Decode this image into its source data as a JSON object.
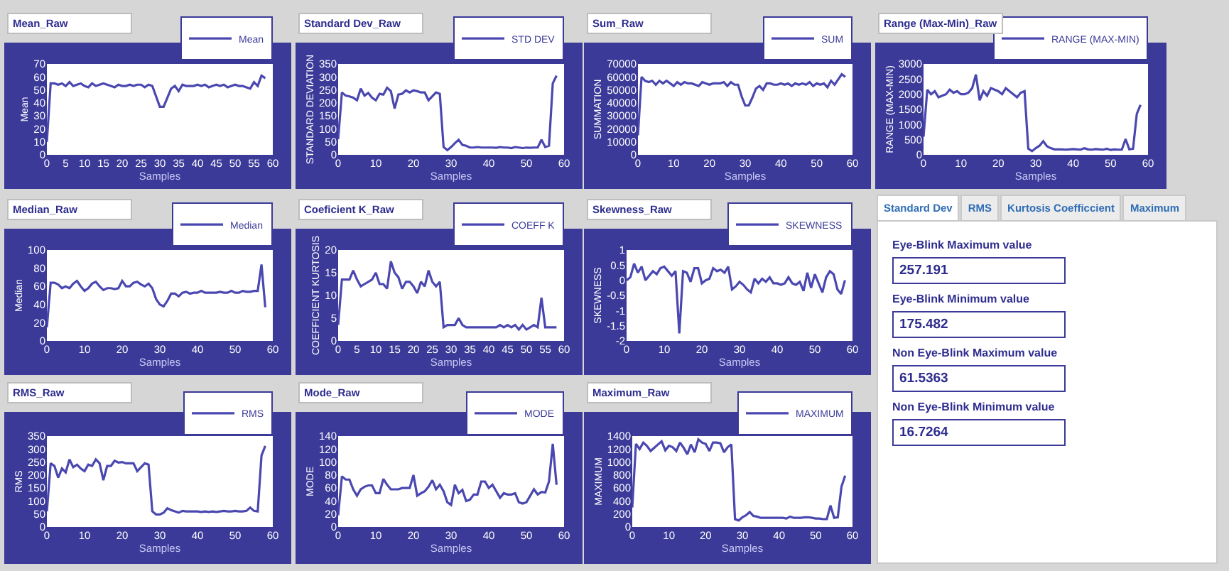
{
  "chart_data": [
    {
      "type": "line",
      "title": "Mean_Raw",
      "xlabel": "Samples",
      "ylabel": "Mean",
      "legend": "top right",
      "xlim": [
        0,
        60
      ],
      "xticks": [
        0,
        5,
        10,
        15,
        20,
        25,
        30,
        35,
        40,
        45,
        50,
        55,
        60
      ],
      "ylim": [
        0,
        70
      ],
      "yticks": [
        0,
        10,
        20,
        30,
        40,
        50,
        60,
        70
      ],
      "x": [
        0,
        1,
        2,
        3,
        4,
        5,
        6,
        7,
        8,
        9,
        10,
        11,
        12,
        13,
        14,
        15,
        16,
        17,
        18,
        19,
        20,
        21,
        22,
        23,
        24,
        25,
        26,
        27,
        28,
        29,
        30,
        31,
        32,
        33,
        34,
        35,
        36,
        37,
        38,
        39,
        40,
        41,
        42,
        43,
        44,
        45,
        46,
        47,
        48,
        49,
        50,
        51,
        52,
        53,
        54,
        55,
        56,
        57,
        58
      ],
      "series": [
        {
          "name": "Mean",
          "color": "#4a48b0",
          "values": [
            10,
            55,
            55,
            54,
            55,
            53,
            56,
            53,
            54,
            55,
            53,
            52,
            55,
            53,
            54,
            55,
            54,
            53,
            52,
            54,
            53,
            53,
            54,
            53,
            54,
            54,
            52,
            54,
            53,
            45,
            37,
            37,
            44,
            51,
            53,
            49,
            54,
            53,
            53,
            53,
            54,
            53,
            54,
            52,
            53,
            54,
            53,
            54,
            52,
            53,
            54,
            53,
            53,
            52,
            51,
            56,
            53,
            61,
            59
          ]
        }
      ]
    },
    {
      "type": "line",
      "title": "Standard Dev_Raw",
      "xlabel": "Samples",
      "ylabel": "STANDARD DEVIATION",
      "legend": "top right",
      "xlim": [
        0,
        60
      ],
      "xticks": [
        0,
        10,
        20,
        30,
        40,
        50,
        60
      ],
      "ylim": [
        0,
        350
      ],
      "yticks": [
        0,
        50,
        100,
        150,
        200,
        250,
        300,
        350
      ],
      "x": [
        0,
        1,
        2,
        3,
        4,
        5,
        6,
        7,
        8,
        9,
        10,
        11,
        12,
        13,
        14,
        15,
        16,
        17,
        18,
        19,
        20,
        21,
        22,
        23,
        24,
        25,
        26,
        27,
        28,
        29,
        30,
        31,
        32,
        33,
        34,
        35,
        36,
        37,
        38,
        39,
        40,
        41,
        42,
        43,
        44,
        45,
        46,
        47,
        48,
        49,
        50,
        51,
        52,
        53,
        54,
        55,
        56,
        57,
        58
      ],
      "series": [
        {
          "name": "STD DEV",
          "color": "#4a48b0",
          "values": [
            60,
            240,
            228,
            225,
            220,
            210,
            255,
            228,
            238,
            220,
            210,
            235,
            232,
            258,
            245,
            178,
            232,
            235,
            248,
            240,
            248,
            245,
            240,
            240,
            210,
            225,
            240,
            235,
            30,
            18,
            30,
            45,
            58,
            38,
            35,
            28,
            28,
            30,
            28,
            28,
            28,
            28,
            27,
            30,
            28,
            28,
            26,
            30,
            28,
            26,
            28,
            27,
            28,
            28,
            58,
            30,
            35,
            275,
            305
          ]
        }
      ]
    },
    {
      "type": "line",
      "title": "Sum_Raw",
      "xlabel": "Samples",
      "ylabel": "SUMMATION",
      "legend": "top right",
      "xlim": [
        0,
        60
      ],
      "xticks": [
        0,
        10,
        20,
        30,
        40,
        50,
        60
      ],
      "ylim": [
        0,
        70000
      ],
      "yticks": [
        0,
        10000,
        20000,
        30000,
        40000,
        50000,
        60000,
        70000
      ],
      "x": [
        0,
        1,
        2,
        3,
        4,
        5,
        6,
        7,
        8,
        9,
        10,
        11,
        12,
        13,
        14,
        15,
        16,
        17,
        18,
        19,
        20,
        21,
        22,
        23,
        24,
        25,
        26,
        27,
        28,
        29,
        30,
        31,
        32,
        33,
        34,
        35,
        36,
        37,
        38,
        39,
        40,
        41,
        42,
        43,
        44,
        45,
        46,
        47,
        48,
        49,
        50,
        51,
        52,
        53,
        54,
        55,
        56,
        57,
        58
      ],
      "series": [
        {
          "name": "SUM",
          "color": "#4a48b0",
          "values": [
            15000,
            60000,
            57000,
            56000,
            57000,
            54000,
            57000,
            55000,
            57000,
            55000,
            53000,
            56000,
            54000,
            56000,
            55000,
            55000,
            54000,
            53000,
            56000,
            55000,
            54000,
            55000,
            55000,
            55000,
            56000,
            53000,
            56000,
            54000,
            54000,
            45000,
            38000,
            38000,
            44000,
            51000,
            53000,
            50000,
            55000,
            55000,
            54000,
            54000,
            55000,
            54000,
            55000,
            53000,
            55000,
            54000,
            55000,
            54000,
            56000,
            53000,
            55000,
            54000,
            55000,
            52000,
            57000,
            54000,
            58000,
            62000,
            60000
          ]
        }
      ]
    },
    {
      "type": "line",
      "title": "Range (Max-Min)_Raw",
      "xlabel": "Samples",
      "ylabel": "RANGE (MAX-MIN)",
      "legend": "top right",
      "xlim": [
        0,
        60
      ],
      "xticks": [
        0,
        10,
        20,
        30,
        40,
        50,
        60
      ],
      "ylim": [
        0,
        3000
      ],
      "yticks": [
        0,
        500,
        1000,
        1500,
        2000,
        2500,
        3000
      ],
      "x": [
        0,
        1,
        2,
        3,
        4,
        5,
        6,
        7,
        8,
        9,
        10,
        11,
        12,
        13,
        14,
        15,
        16,
        17,
        18,
        19,
        20,
        21,
        22,
        23,
        24,
        25,
        26,
        27,
        28,
        29,
        30,
        31,
        32,
        33,
        34,
        35,
        36,
        37,
        38,
        39,
        40,
        41,
        42,
        43,
        44,
        45,
        46,
        47,
        48,
        49,
        50,
        51,
        52,
        53,
        54,
        55,
        56,
        57,
        58
      ],
      "series": [
        {
          "name": "RANGE (MAX-MIN)",
          "color": "#4a48b0",
          "values": [
            600,
            2150,
            2000,
            2100,
            1900,
            1950,
            2000,
            2150,
            2050,
            2100,
            2000,
            2000,
            2050,
            2200,
            2650,
            1800,
            2100,
            1950,
            2200,
            2150,
            2100,
            2000,
            2200,
            2100,
            2000,
            1900,
            2050,
            2100,
            200,
            120,
            220,
            300,
            450,
            280,
            220,
            180,
            180,
            180,
            170,
            180,
            190,
            180,
            170,
            220,
            180,
            170,
            190,
            180,
            170,
            200,
            160,
            180,
            170,
            170,
            520,
            180,
            200,
            1350,
            1650
          ]
        }
      ]
    },
    {
      "type": "line",
      "title": "Median_Raw",
      "xlabel": "Samples",
      "ylabel": "Median",
      "legend": "top right",
      "xlim": [
        0,
        60
      ],
      "xticks": [
        0,
        10,
        20,
        30,
        40,
        50,
        60
      ],
      "ylim": [
        0,
        100
      ],
      "yticks": [
        0,
        20,
        40,
        60,
        80,
        100
      ],
      "x": [
        0,
        1,
        2,
        3,
        4,
        5,
        6,
        7,
        8,
        9,
        10,
        11,
        12,
        13,
        14,
        15,
        16,
        17,
        18,
        19,
        20,
        21,
        22,
        23,
        24,
        25,
        26,
        27,
        28,
        29,
        30,
        31,
        32,
        33,
        34,
        35,
        36,
        37,
        38,
        39,
        40,
        41,
        42,
        43,
        44,
        45,
        46,
        47,
        48,
        49,
        50,
        51,
        52,
        53,
        54,
        55,
        56,
        57,
        58
      ],
      "series": [
        {
          "name": "Median",
          "color": "#4a48b0",
          "values": [
            15,
            64,
            64,
            62,
            58,
            60,
            58,
            63,
            66,
            60,
            55,
            58,
            63,
            65,
            60,
            56,
            58,
            58,
            57,
            58,
            66,
            60,
            60,
            64,
            65,
            62,
            60,
            63,
            58,
            46,
            40,
            38,
            44,
            52,
            52,
            49,
            53,
            54,
            52,
            53,
            53,
            55,
            53,
            53,
            53,
            53,
            54,
            53,
            53,
            55,
            53,
            53,
            55,
            54,
            54,
            55,
            55,
            84,
            37
          ]
        }
      ]
    },
    {
      "type": "line",
      "title": "Coeficient K_Raw",
      "xlabel": "Samples",
      "ylabel": "COEFFICIENT KURTOSIS",
      "legend": "top right",
      "xlim": [
        0,
        60
      ],
      "xticks": [
        0,
        5,
        10,
        15,
        20,
        25,
        30,
        35,
        40,
        45,
        50,
        55,
        60
      ],
      "ylim": [
        0,
        20
      ],
      "yticks": [
        0,
        5,
        10,
        15,
        20
      ],
      "x": [
        0,
        1,
        2,
        3,
        4,
        5,
        6,
        7,
        8,
        9,
        10,
        11,
        12,
        13,
        14,
        15,
        16,
        17,
        18,
        19,
        20,
        21,
        22,
        23,
        24,
        25,
        26,
        27,
        28,
        29,
        30,
        31,
        32,
        33,
        34,
        35,
        36,
        37,
        38,
        39,
        40,
        41,
        42,
        43,
        44,
        45,
        46,
        47,
        48,
        49,
        50,
        51,
        52,
        53,
        54,
        55,
        56,
        57,
        58
      ],
      "series": [
        {
          "name": "COEFF K",
          "color": "#4a48b0",
          "values": [
            3.5,
            13.5,
            13.5,
            13.5,
            15.5,
            13.5,
            12,
            12.5,
            13,
            13.5,
            15,
            12.5,
            12.5,
            11.5,
            17.5,
            15,
            14,
            11.5,
            13,
            13,
            12,
            10.5,
            13,
            12,
            15.5,
            13,
            12,
            13,
            3,
            3.5,
            3.5,
            3.5,
            5,
            3.5,
            3,
            3,
            3,
            3,
            3,
            3,
            3,
            3,
            3,
            3.5,
            3,
            3.5,
            3,
            3.5,
            2.5,
            3.5,
            2.5,
            3,
            3.5,
            3,
            9.5,
            3,
            3,
            3,
            3
          ]
        }
      ]
    },
    {
      "type": "line",
      "title": "Skewness_Raw",
      "xlabel": "Samples",
      "ylabel": "SKEWNESS",
      "legend": "top right",
      "xlim": [
        0,
        60
      ],
      "xticks": [
        0,
        10,
        20,
        30,
        40,
        50,
        60
      ],
      "ylim": [
        -2,
        1
      ],
      "yticks": [
        -2,
        -1.5,
        -1,
        -0.5,
        0,
        0.5,
        1
      ],
      "x": [
        0,
        1,
        2,
        3,
        4,
        5,
        6,
        7,
        8,
        9,
        10,
        11,
        12,
        13,
        14,
        15,
        16,
        17,
        18,
        19,
        20,
        21,
        22,
        23,
        24,
        25,
        26,
        27,
        28,
        29,
        30,
        31,
        32,
        33,
        34,
        35,
        36,
        37,
        38,
        39,
        40,
        41,
        42,
        43,
        44,
        45,
        46,
        47,
        48,
        49,
        50,
        51,
        52,
        53,
        54,
        55,
        56,
        57,
        58
      ],
      "series": [
        {
          "name": "SKEWNESS",
          "color": "#4a48b0",
          "values": [
            0,
            0.1,
            0.55,
            0.25,
            0.45,
            0,
            0.15,
            0.3,
            0.2,
            0.4,
            0.45,
            0.3,
            0.15,
            0.3,
            -1.75,
            0.3,
            0.25,
            -0.05,
            0.4,
            0.4,
            -0.1,
            0,
            0.05,
            0.4,
            0.3,
            0.35,
            0.25,
            0.45,
            -0.3,
            -0.2,
            -0.05,
            -0.15,
            -0.3,
            -0.4,
            0.05,
            -0.1,
            0.05,
            -0.05,
            0.1,
            -0.1,
            -0.1,
            -0.15,
            -0.1,
            0.1,
            -0.1,
            -0.15,
            -0.05,
            -0.35,
            0.25,
            -0.25,
            0.2,
            -0.1,
            -0.4,
            0.1,
            0.3,
            0.2,
            -0.3,
            -0.45,
            0
          ]
        }
      ]
    },
    {
      "type": "other",
      "categories": [
        "Standard Dev",
        "RMS",
        "Kurtosis Coefficcient",
        "Maximum"
      ],
      "annotations": [
        "Eye-Blink Maximum value",
        "257.191",
        "Eye-Blink Minimum value",
        "175.482",
        "Non Eye-Blink Maximum value",
        "61.5363",
        "Non Eye-Blink Minimum value",
        "16.7264"
      ]
    },
    {
      "type": "line",
      "title": "RMS_Raw",
      "xlabel": "Samples",
      "ylabel": "RMS",
      "legend": "top right",
      "xlim": [
        0,
        60
      ],
      "xticks": [
        0,
        10,
        20,
        30,
        40,
        50,
        60
      ],
      "ylim": [
        0,
        350
      ],
      "yticks": [
        0,
        50,
        100,
        150,
        200,
        250,
        300,
        350
      ],
      "x": [
        0,
        1,
        2,
        3,
        4,
        5,
        6,
        7,
        8,
        9,
        10,
        11,
        12,
        13,
        14,
        15,
        16,
        17,
        18,
        19,
        20,
        21,
        22,
        23,
        24,
        25,
        26,
        27,
        28,
        29,
        30,
        31,
        32,
        33,
        34,
        35,
        36,
        37,
        38,
        39,
        40,
        41,
        42,
        43,
        44,
        45,
        46,
        47,
        48,
        49,
        50,
        51,
        52,
        53,
        54,
        55,
        56,
        57,
        58
      ],
      "series": [
        {
          "name": "RMS",
          "color": "#4a48b0",
          "values": [
            60,
            245,
            235,
            190,
            225,
            210,
            260,
            230,
            240,
            225,
            215,
            240,
            235,
            260,
            245,
            180,
            235,
            235,
            255,
            248,
            250,
            245,
            245,
            245,
            215,
            230,
            245,
            240,
            60,
            48,
            48,
            55,
            72,
            65,
            60,
            55,
            62,
            60,
            60,
            60,
            60,
            58,
            60,
            58,
            60,
            58,
            60,
            62,
            60,
            60,
            62,
            60,
            60,
            62,
            75,
            62,
            60,
            275,
            312
          ]
        }
      ]
    },
    {
      "type": "line",
      "title": "Mode_Raw",
      "xlabel": "Samples",
      "ylabel": "MODE",
      "legend": "top right",
      "xlim": [
        0,
        60
      ],
      "xticks": [
        0,
        10,
        20,
        30,
        40,
        50,
        60
      ],
      "ylim": [
        0,
        140
      ],
      "yticks": [
        0,
        20,
        40,
        60,
        80,
        100,
        120,
        140
      ],
      "x": [
        0,
        1,
        2,
        3,
        4,
        5,
        6,
        7,
        8,
        9,
        10,
        11,
        12,
        13,
        14,
        15,
        16,
        17,
        18,
        19,
        20,
        21,
        22,
        23,
        24,
        25,
        26,
        27,
        28,
        29,
        30,
        31,
        32,
        33,
        34,
        35,
        36,
        37,
        38,
        39,
        40,
        41,
        42,
        43,
        44,
        45,
        46,
        47,
        48,
        49,
        50,
        51,
        52,
        53,
        54,
        55,
        56,
        57,
        58
      ],
      "series": [
        {
          "name": "MODE",
          "color": "#4a48b0",
          "values": [
            18,
            78,
            73,
            73,
            58,
            48,
            58,
            62,
            64,
            64,
            52,
            52,
            74,
            65,
            58,
            58,
            58,
            60,
            60,
            60,
            80,
            48,
            52,
            55,
            62,
            72,
            58,
            65,
            55,
            38,
            34,
            65,
            52,
            57,
            40,
            42,
            50,
            50,
            70,
            70,
            60,
            65,
            55,
            45,
            52,
            50,
            50,
            52,
            38,
            36,
            38,
            48,
            58,
            50,
            54,
            53,
            70,
            128,
            65
          ]
        }
      ]
    },
    {
      "type": "line",
      "title": "Maximum_Raw",
      "xlabel": "Samples",
      "ylabel": "MAXIMUM",
      "legend": "top right",
      "xlim": [
        0,
        60
      ],
      "xticks": [
        0,
        10,
        20,
        30,
        40,
        50,
        60
      ],
      "ylim": [
        0,
        1400
      ],
      "yticks": [
        0,
        200,
        400,
        600,
        800,
        1000,
        1200,
        1400
      ],
      "x": [
        0,
        1,
        2,
        3,
        4,
        5,
        6,
        7,
        8,
        9,
        10,
        11,
        12,
        13,
        14,
        15,
        16,
        17,
        18,
        19,
        20,
        21,
        22,
        23,
        24,
        25,
        26,
        27,
        28,
        29,
        30,
        31,
        32,
        33,
        34,
        35,
        36,
        37,
        38,
        39,
        40,
        41,
        42,
        43,
        44,
        45,
        46,
        47,
        48,
        49,
        50,
        51,
        52,
        53,
        54,
        55,
        56,
        57,
        58
      ],
      "series": [
        {
          "name": "MAXIMUM",
          "color": "#4a48b0",
          "values": [
            300,
            1280,
            1200,
            1300,
            1250,
            1170,
            1220,
            1270,
            1320,
            1180,
            1250,
            1230,
            1170,
            1300,
            1220,
            1120,
            1270,
            1150,
            1350,
            1300,
            1280,
            1170,
            1300,
            1300,
            1290,
            1150,
            1230,
            1270,
            120,
            100,
            150,
            180,
            230,
            170,
            160,
            140,
            140,
            140,
            140,
            140,
            140,
            140,
            130,
            160,
            140,
            140,
            140,
            150,
            150,
            140,
            130,
            130,
            120,
            120,
            330,
            140,
            150,
            620,
            790
          ]
        }
      ]
    }
  ]
}
